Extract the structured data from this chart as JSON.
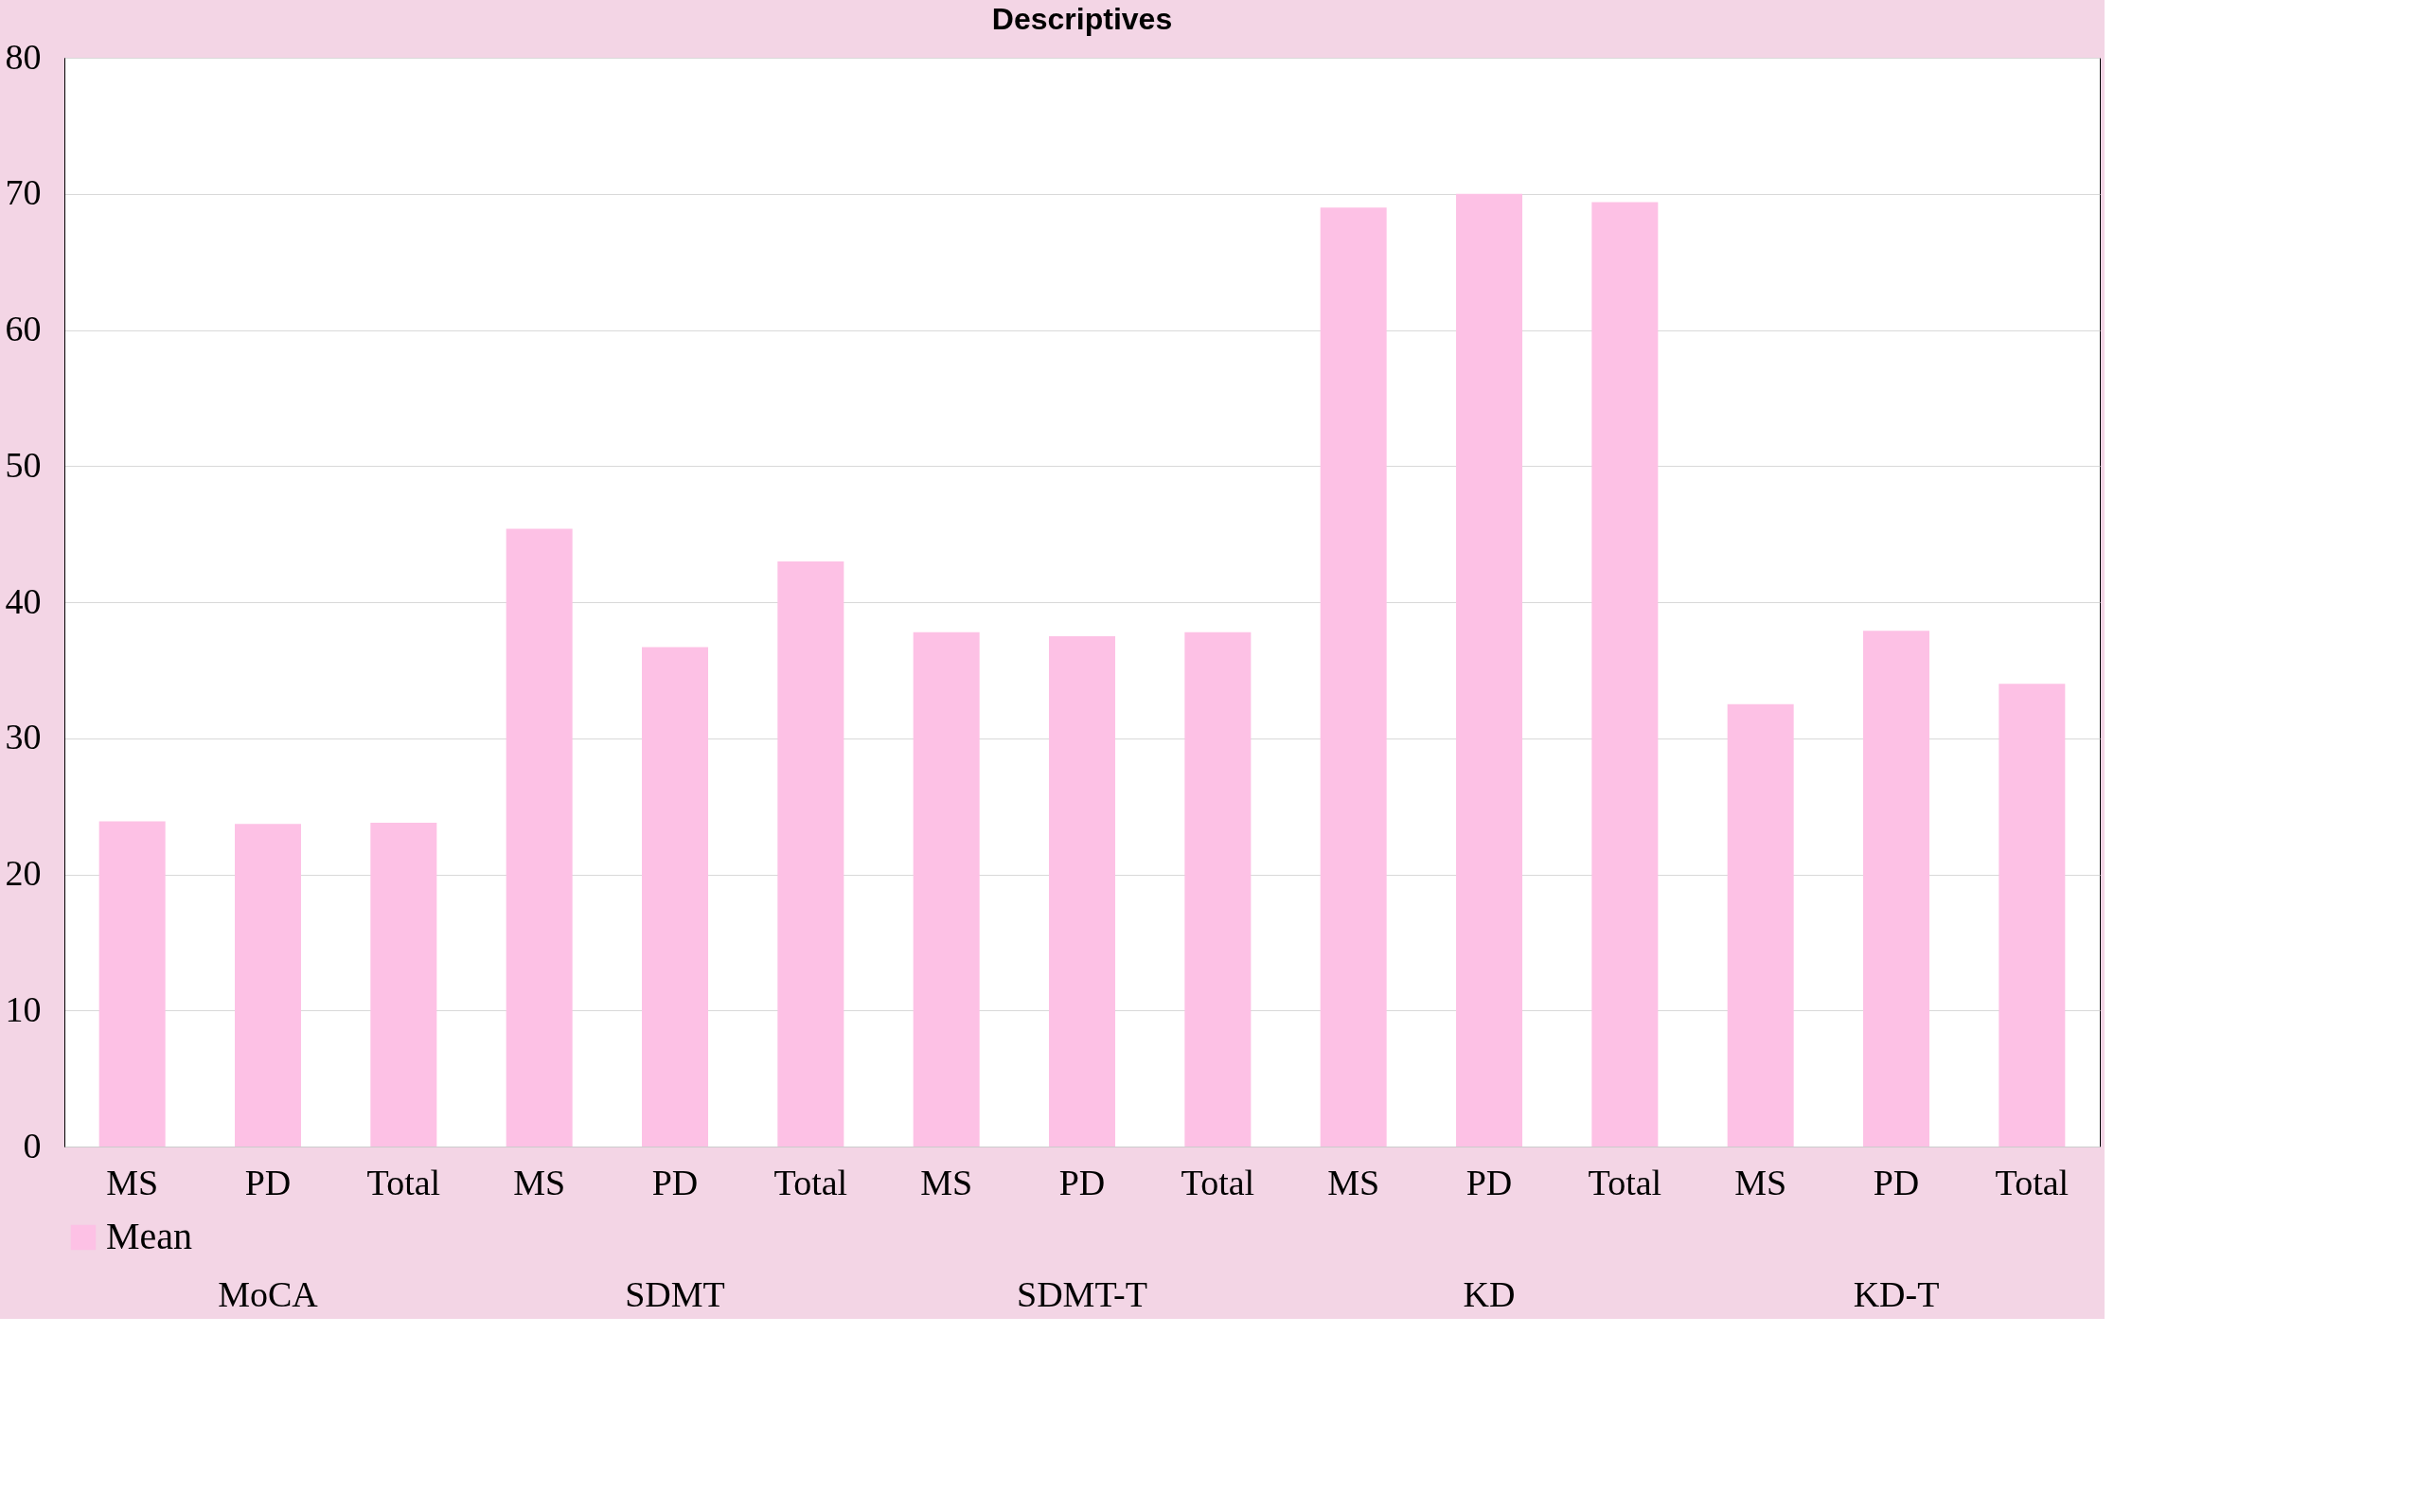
{
  "chart_data": {
    "type": "bar",
    "title": "Descriptives",
    "categories": [
      "MS",
      "PD",
      "Total",
      "MS",
      "PD",
      "Total",
      "MS",
      "PD",
      "Total",
      "MS",
      "PD",
      "Total",
      "MS",
      "PD",
      "Total"
    ],
    "series": [
      {
        "name": "Mean",
        "color": "#fdc1e5",
        "values": [
          23.9,
          23.7,
          23.8,
          45.4,
          36.7,
          43.0,
          37.8,
          37.5,
          37.8,
          69.0,
          70.0,
          69.4,
          32.5,
          37.9,
          34.0
        ]
      }
    ],
    "annotations": [
      "MoCA",
      "SDMT",
      "SDMT-T",
      "KD",
      "KD-T"
    ],
    "ylim": [
      0,
      80
    ],
    "yticks": [
      0,
      10,
      20,
      30,
      40,
      50,
      60,
      70,
      80
    ],
    "grid": "y",
    "legend": "bottom"
  }
}
